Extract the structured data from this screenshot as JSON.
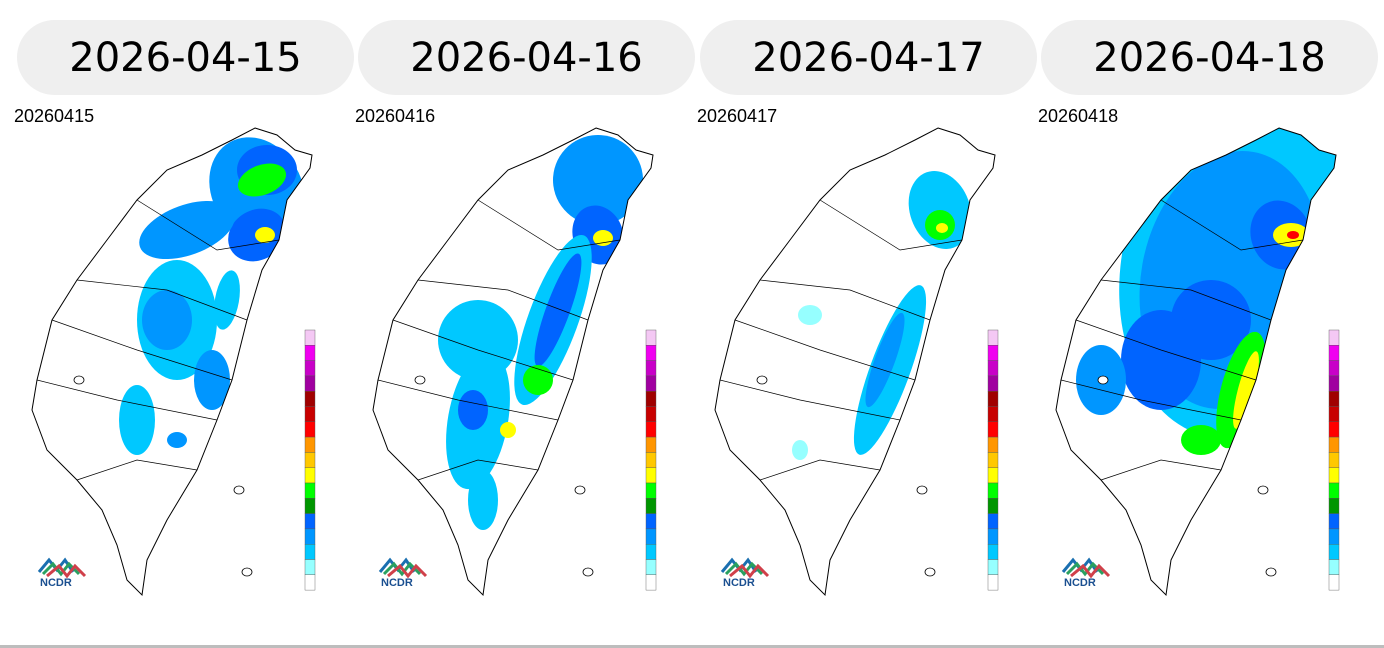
{
  "panels": [
    {
      "date": "2026-04-15",
      "map_label": "20260415"
    },
    {
      "date": "2026-04-16",
      "map_label": "20260416"
    },
    {
      "date": "2026-04-17",
      "map_label": "20260417"
    },
    {
      "date": "2026-04-18",
      "map_label": "20260418"
    }
  ],
  "logo": {
    "text": "NCDR"
  },
  "legend_colors": [
    "#f4c8f4",
    "#f000f0",
    "#c800c8",
    "#a000a0",
    "#a00000",
    "#c80000",
    "#ff0000",
    "#ff9600",
    "#ffc800",
    "#ffff00",
    "#00ff00",
    "#009600",
    "#0064ff",
    "#0096ff",
    "#00c8ff",
    "#96ffff",
    "#ffffff"
  ]
}
